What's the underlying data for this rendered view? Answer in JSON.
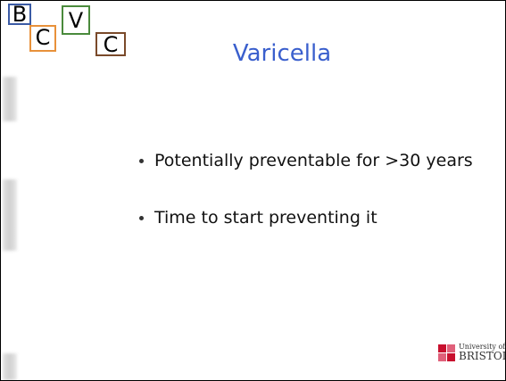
{
  "logo": {
    "letters": [
      "B",
      "C",
      "V",
      "C"
    ]
  },
  "title": "Varicella",
  "bullets": [
    "Potentially preventable for >30 years",
    "Time to start preventing it"
  ],
  "footer": {
    "line1": "University of",
    "line2": "BRISTOL"
  }
}
